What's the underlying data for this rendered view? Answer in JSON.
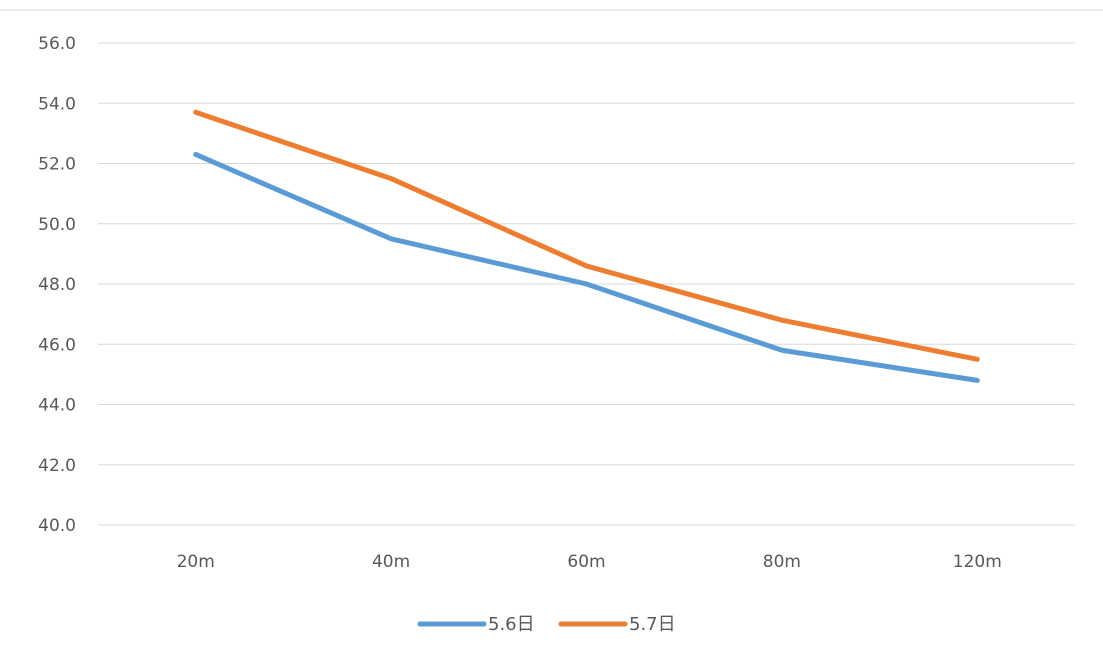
{
  "chart_data": {
    "type": "line",
    "categories": [
      "20m",
      "40m",
      "60m",
      "80m",
      "120m"
    ],
    "series": [
      {
        "name": "5.6日",
        "values": [
          52.3,
          49.5,
          48.0,
          45.8,
          44.8
        ],
        "color": "#5b9bd5"
      },
      {
        "name": "5.7日",
        "values": [
          53.7,
          51.5,
          48.6,
          46.8,
          45.5
        ],
        "color": "#ed7d31"
      }
    ],
    "title": "",
    "xlabel": "",
    "ylabel": "",
    "ylim": [
      40,
      56
    ],
    "yticks": [
      "40.0",
      "42.0",
      "44.0",
      "46.0",
      "48.0",
      "50.0",
      "52.0",
      "54.0",
      "56.0"
    ],
    "grid": "horizontal",
    "legend_position": "bottom"
  }
}
